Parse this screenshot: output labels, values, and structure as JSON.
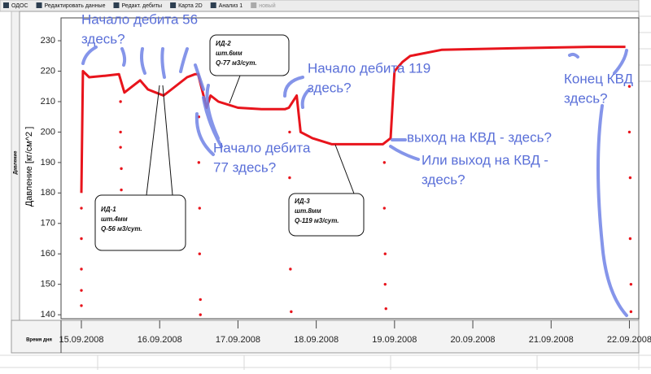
{
  "toolbar": {
    "buttons": [
      "ОДОС",
      "Редактировать данные",
      "Редакт. дебиты",
      "Карта 2D",
      "Анализ 1",
      "новый"
    ]
  },
  "side_label": "Давление",
  "chart_data": {
    "type": "line",
    "y_label": "Давление [кг/см^2 ]",
    "x_label": "Время дня",
    "xlim": [
      -0.26,
      7.12
    ],
    "ylim": [
      138.7,
      237.5
    ],
    "yticks": [
      140,
      150,
      160,
      170,
      180,
      190,
      200,
      210,
      220,
      230
    ],
    "xticks": [
      {
        "value": 0,
        "label": "15.09.2008"
      },
      {
        "value": 1,
        "label": "16.09.2008"
      },
      {
        "value": 2,
        "label": "17.09.2008"
      },
      {
        "value": 3,
        "label": "18.09.2008"
      },
      {
        "value": 4,
        "label": "19.09.2008"
      },
      {
        "value": 5,
        "label": "20.09.2008"
      },
      {
        "value": 6,
        "label": "21.09.2008"
      },
      {
        "value": 7,
        "label": "22.09.2008"
      }
    ],
    "series": [
      {
        "color": "#e8141c",
        "x": [
          0,
          0.02,
          0.1,
          0.3,
          0.48,
          0.55,
          0.65,
          0.75,
          0.85,
          0.95,
          1.05,
          1.15,
          1.25,
          1.35,
          1.45,
          1.49,
          1.6,
          1.65,
          1.75,
          2.0,
          2.3,
          2.6,
          2.65,
          2.75,
          2.8,
          2.95,
          3.2,
          3.5,
          3.85,
          3.95,
          4.0,
          4.1,
          4.2,
          4.6,
          5.5,
          6.5,
          6.95
        ],
        "values": [
          180,
          220,
          218,
          218.5,
          219,
          213,
          215,
          217,
          214,
          213,
          212,
          214,
          216,
          218,
          219,
          219,
          208,
          212,
          210,
          208,
          207.5,
          207.5,
          208,
          212,
          200,
          198,
          196,
          196,
          196,
          198,
          220,
          223,
          225,
          227,
          227.5,
          228,
          228
        ]
      },
      {
        "color": "#e8141c",
        "x": [
          0,
          0,
          0,
          0,
          0,
          0.5,
          0.5,
          0.5,
          0.51,
          0.51,
          1.5,
          1.5,
          1.51,
          1.51,
          1.52,
          1.52,
          2.66,
          2.66,
          2.67,
          2.67,
          2.68,
          3.87,
          3.87,
          3.88,
          3.88,
          3.89,
          7.0,
          7.0,
          7.01,
          7.01,
          7.02,
          7.02
        ],
        "values": [
          175,
          165,
          155,
          148,
          143,
          210,
          200,
          195,
          188,
          181,
          205,
          190,
          175,
          160,
          145,
          140,
          200,
          185,
          170,
          155,
          141,
          190,
          175,
          160,
          150,
          142,
          215,
          200,
          185,
          165,
          150,
          141
        ]
      }
    ],
    "annotations": [
      {
        "lines": [
          "Начало дебита 56",
          "здесь?"
        ]
      },
      {
        "lines": [
          "Начало дебита",
          "77 здесь?"
        ]
      },
      {
        "lines": [
          "Начало дебита 119",
          "здесь?"
        ]
      },
      {
        "lines": [
          "выход на КВД - здесь?"
        ]
      },
      {
        "lines": [
          "Или выход на КВД -",
          "здесь?"
        ]
      },
      {
        "lines": [
          "Конец КВД",
          "здесь?"
        ]
      }
    ],
    "callouts": [
      {
        "lines": [
          "ИД-1",
          "шт.4мм",
          "Q-56 м3/сут."
        ]
      },
      {
        "lines": [
          "ИД-2",
          "шт.6мм",
          "Q-77 м3/сут."
        ]
      },
      {
        "lines": [
          "ИД-3",
          "шт.8мм",
          "Q-119 м3/сут."
        ]
      }
    ]
  }
}
